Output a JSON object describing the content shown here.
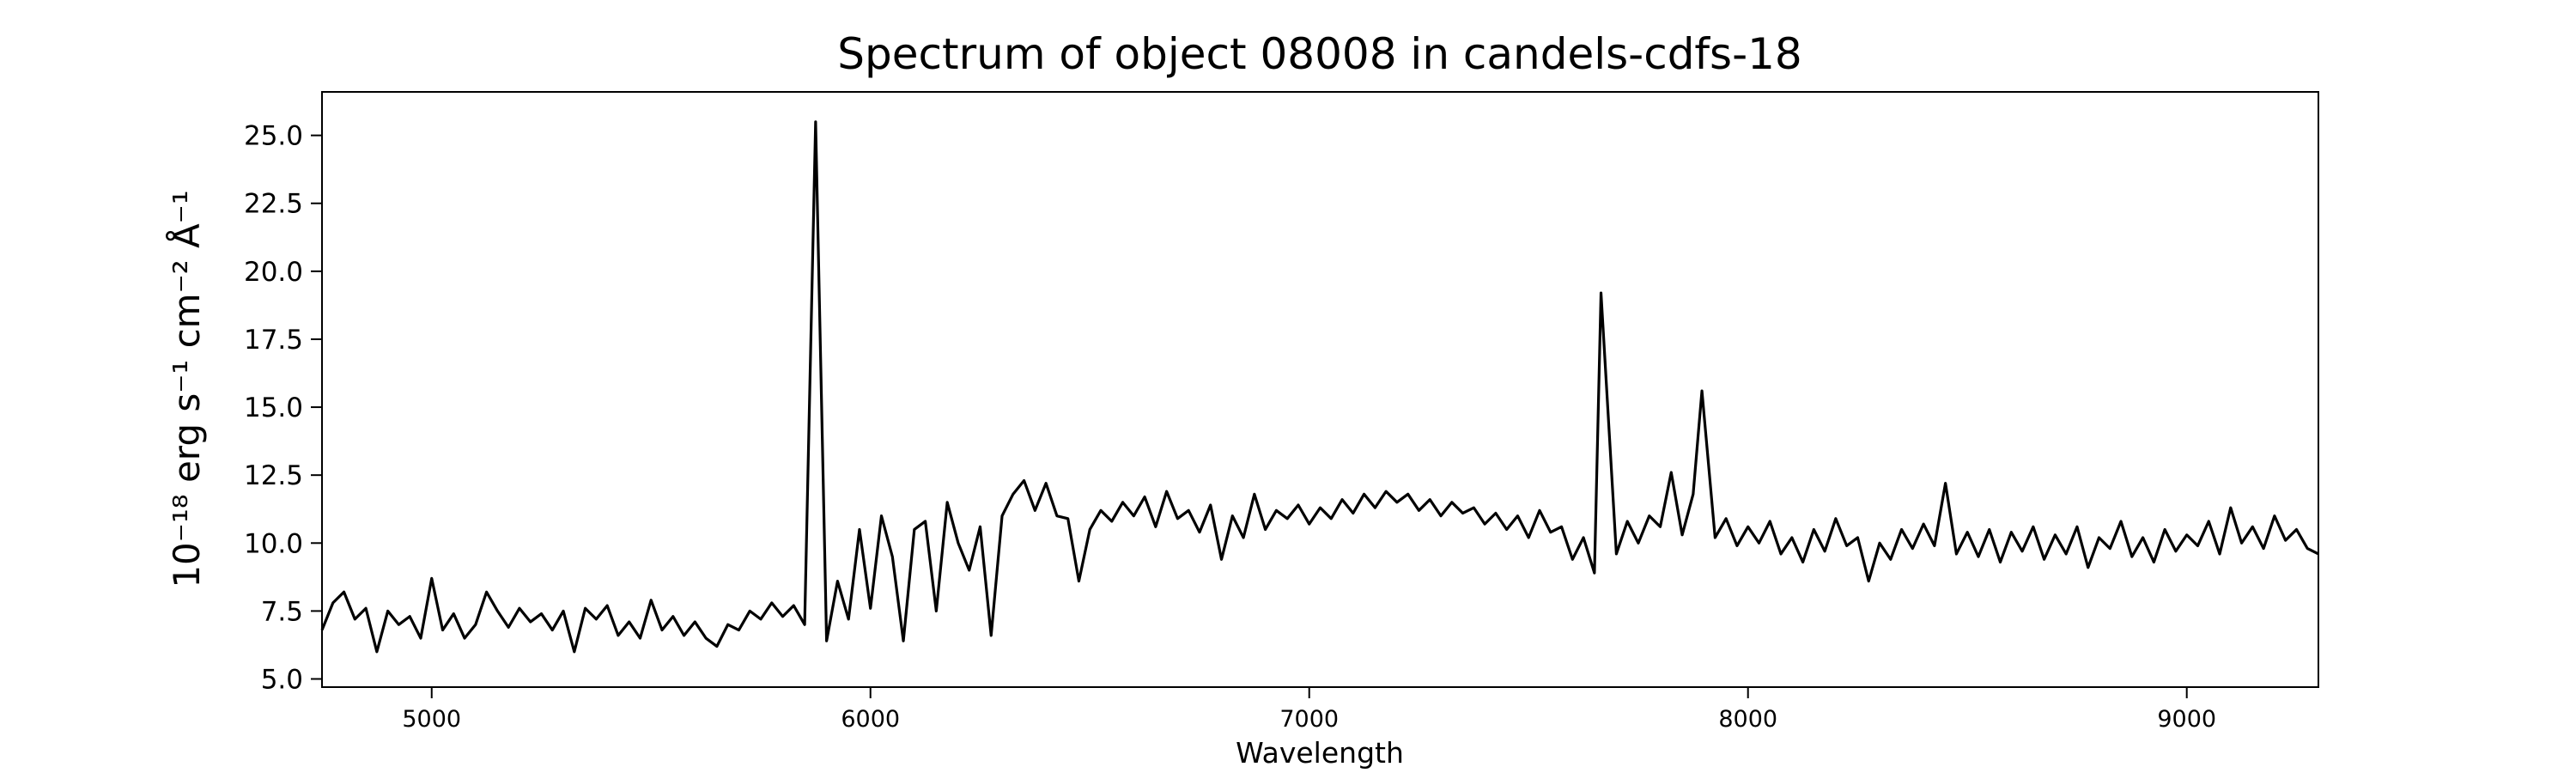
{
  "chart_data": {
    "type": "line",
    "title": "Spectrum of object 08008 in candels-cdfs-18",
    "x_label": "Wavelength",
    "y_label": "10⁻¹⁸ erg s⁻¹ cm⁻² Å⁻¹",
    "xlim": [
      4750,
      9300
    ],
    "ylim": [
      4.7,
      26.6
    ],
    "xticks": [
      5000,
      6000,
      7000,
      8000,
      9000
    ],
    "yticks": [
      {
        "value": 5,
        "label": "5.0"
      },
      {
        "value": 7.5,
        "label": "7.5"
      },
      {
        "value": 10,
        "label": "10.0"
      },
      {
        "value": 12.5,
        "label": "12.5"
      },
      {
        "value": 15,
        "label": "15.0"
      },
      {
        "value": 17.5,
        "label": "17.5"
      },
      {
        "value": 20,
        "label": "20.0"
      },
      {
        "value": 22.5,
        "label": "22.5"
      },
      {
        "value": 25,
        "label": "25.0"
      }
    ],
    "grid": false,
    "x": [
      4750,
      4775,
      4800,
      4825,
      4850,
      4875,
      4900,
      4925,
      4950,
      4975,
      5000,
      5025,
      5050,
      5075,
      5100,
      5125,
      5150,
      5175,
      5200,
      5225,
      5250,
      5275,
      5300,
      5325,
      5350,
      5375,
      5400,
      5425,
      5450,
      5475,
      5500,
      5525,
      5550,
      5575,
      5600,
      5625,
      5650,
      5675,
      5700,
      5725,
      5750,
      5775,
      5800,
      5825,
      5850,
      5875,
      5900,
      5925,
      5950,
      5975,
      6000,
      6025,
      6050,
      6075,
      6100,
      6125,
      6150,
      6175,
      6200,
      6225,
      6250,
      6275,
      6300,
      6325,
      6350,
      6375,
      6400,
      6425,
      6450,
      6475,
      6500,
      6525,
      6550,
      6575,
      6600,
      6625,
      6650,
      6675,
      6700,
      6725,
      6750,
      6775,
      6800,
      6825,
      6850,
      6875,
      6900,
      6925,
      6950,
      6975,
      7000,
      7025,
      7050,
      7075,
      7100,
      7125,
      7150,
      7175,
      7200,
      7225,
      7250,
      7275,
      7300,
      7325,
      7350,
      7375,
      7400,
      7425,
      7450,
      7475,
      7500,
      7525,
      7550,
      7575,
      7600,
      7625,
      7650,
      7665,
      7700,
      7725,
      7750,
      7775,
      7800,
      7825,
      7850,
      7875,
      7895,
      7925,
      7950,
      7975,
      8000,
      8025,
      8050,
      8075,
      8100,
      8125,
      8150,
      8175,
      8200,
      8225,
      8250,
      8275,
      8300,
      8325,
      8350,
      8375,
      8400,
      8425,
      8450,
      8475,
      8500,
      8525,
      8550,
      8575,
      8600,
      8625,
      8650,
      8675,
      8700,
      8725,
      8750,
      8775,
      8800,
      8825,
      8850,
      8875,
      8900,
      8925,
      8950,
      8975,
      9000,
      9025,
      9050,
      9075,
      9100,
      9125,
      9150,
      9175,
      9200,
      9225,
      9250,
      9275,
      9300
    ],
    "series": [
      {
        "color": "#000000",
        "values": [
          6.8,
          7.8,
          8.2,
          7.2,
          7.6,
          6.0,
          7.5,
          7.0,
          7.3,
          6.5,
          8.7,
          6.8,
          7.4,
          6.5,
          7.0,
          8.2,
          7.5,
          6.9,
          7.6,
          7.1,
          7.4,
          6.8,
          7.5,
          6.0,
          7.6,
          7.2,
          7.7,
          6.6,
          7.1,
          6.5,
          7.9,
          6.8,
          7.3,
          6.6,
          7.1,
          6.5,
          6.2,
          7.0,
          6.8,
          7.5,
          7.2,
          7.8,
          7.3,
          7.7,
          7.0,
          25.5,
          6.4,
          8.6,
          7.2,
          10.5,
          7.6,
          11.0,
          9.5,
          6.4,
          10.5,
          10.8,
          7.5,
          11.5,
          10.0,
          9.0,
          10.6,
          6.6,
          11.0,
          11.8,
          12.3,
          11.2,
          12.2,
          11.0,
          10.9,
          8.6,
          10.5,
          11.2,
          10.8,
          11.5,
          11.0,
          11.7,
          10.6,
          11.9,
          10.9,
          11.2,
          10.4,
          11.4,
          9.4,
          11.0,
          10.2,
          11.8,
          10.5,
          11.2,
          10.9,
          11.4,
          10.7,
          11.3,
          10.9,
          11.6,
          11.1,
          11.8,
          11.3,
          11.9,
          11.5,
          11.8,
          11.2,
          11.6,
          11.0,
          11.5,
          11.1,
          11.3,
          10.7,
          11.1,
          10.5,
          11.0,
          10.2,
          11.2,
          10.4,
          10.6,
          9.4,
          10.2,
          8.9,
          19.2,
          9.6,
          10.8,
          10.0,
          11.0,
          10.6,
          12.6,
          10.3,
          11.8,
          15.6,
          10.2,
          10.9,
          9.9,
          10.6,
          10.0,
          10.8,
          9.6,
          10.2,
          9.3,
          10.5,
          9.7,
          10.9,
          9.9,
          10.2,
          8.6,
          10.0,
          9.4,
          10.5,
          9.8,
          10.7,
          9.9,
          12.2,
          9.6,
          10.4,
          9.5,
          10.5,
          9.3,
          10.4,
          9.7,
          10.6,
          9.4,
          10.3,
          9.6,
          10.6,
          9.1,
          10.2,
          9.8,
          10.8,
          9.5,
          10.2,
          9.3,
          10.5,
          9.7,
          10.3,
          9.9,
          10.8,
          9.6,
          11.3,
          10.0,
          10.6,
          9.8,
          11.0,
          10.1,
          10.5,
          9.8,
          9.6
        ]
      }
    ]
  }
}
